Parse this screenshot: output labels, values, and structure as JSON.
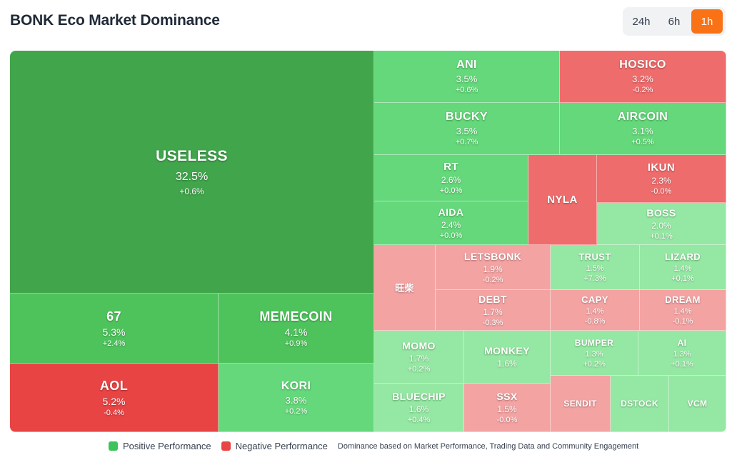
{
  "header": {
    "title": "BONK Eco Market Dominance",
    "timeframes": [
      "24h",
      "6h",
      "1h"
    ],
    "active_timeframe": "1h"
  },
  "legend": {
    "positive_label": "Positive Performance",
    "negative_label": "Negative Performance",
    "note": "Dominance based on Market Performance, Trading Data and Community Engagement",
    "positive_color": "#3cc35c",
    "negative_color": "#e84545"
  },
  "chart_data": {
    "type": "treemap",
    "title": "BONK Eco Market Dominance",
    "tiles": [
      {
        "name": "USELESS",
        "dominance": "32.5%",
        "change": "+0.6%"
      },
      {
        "name": "67",
        "dominance": "5.3%",
        "change": "+2.4%"
      },
      {
        "name": "MEMECOIN",
        "dominance": "4.1%",
        "change": "+0.9%"
      },
      {
        "name": "AOL",
        "dominance": "5.2%",
        "change": "-0.4%"
      },
      {
        "name": "KORI",
        "dominance": "3.8%",
        "change": "+0.2%"
      },
      {
        "name": "ANI",
        "dominance": "3.5%",
        "change": "+0.6%"
      },
      {
        "name": "HOSICO",
        "dominance": "3.2%",
        "change": "-0.2%"
      },
      {
        "name": "BUCKY",
        "dominance": "3.5%",
        "change": "+0.7%"
      },
      {
        "name": "AIRCOIN",
        "dominance": "3.1%",
        "change": "+0.5%"
      },
      {
        "name": "RT",
        "dominance": "2.6%",
        "change": "+0.0%"
      },
      {
        "name": "NYLA",
        "dominance": "",
        "change": ""
      },
      {
        "name": "IKUN",
        "dominance": "2.3%",
        "change": "-0.0%"
      },
      {
        "name": "AIDA",
        "dominance": "2.4%",
        "change": "+0.0%"
      },
      {
        "name": "BOSS",
        "dominance": "2.0%",
        "change": "+0.1%"
      },
      {
        "name": "旺柴",
        "dominance": "",
        "change": ""
      },
      {
        "name": "LETSBONK",
        "dominance": "1.9%",
        "change": "-0.2%"
      },
      {
        "name": "TRUST",
        "dominance": "1.5%",
        "change": "+7.3%"
      },
      {
        "name": "LIZARD",
        "dominance": "1.4%",
        "change": "+0.1%"
      },
      {
        "name": "DEBT",
        "dominance": "1.7%",
        "change": "-0.3%"
      },
      {
        "name": "CAPY",
        "dominance": "1.4%",
        "change": "-0.8%"
      },
      {
        "name": "DREAM",
        "dominance": "1.4%",
        "change": "-0.1%"
      },
      {
        "name": "MOMO",
        "dominance": "1.7%",
        "change": "+0.2%"
      },
      {
        "name": "MONKEY",
        "dominance": "1.6%",
        "change": ""
      },
      {
        "name": "BUMPER",
        "dominance": "1.3%",
        "change": "+0.2%"
      },
      {
        "name": "AI",
        "dominance": "1.3%",
        "change": "+0.1%"
      },
      {
        "name": "BLUECHIP",
        "dominance": "1.6%",
        "change": "+0.4%"
      },
      {
        "name": "SSX",
        "dominance": "1.5%",
        "change": "-0.0%"
      },
      {
        "name": "SENDIT",
        "dominance": "",
        "change": ""
      },
      {
        "name": "DSTOCK",
        "dominance": "",
        "change": ""
      },
      {
        "name": "VCM",
        "dominance": "",
        "change": ""
      }
    ]
  }
}
